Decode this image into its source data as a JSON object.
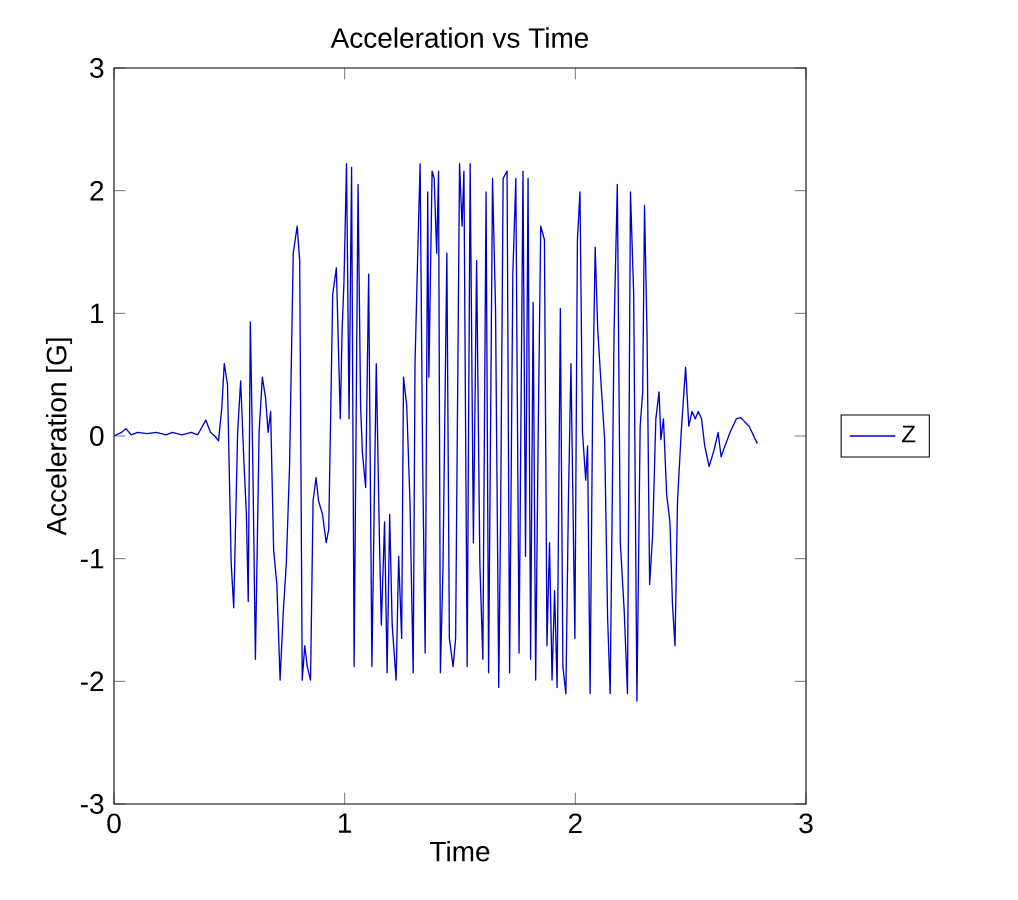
{
  "chart_data": {
    "type": "line",
    "title": "Acceleration vs Time",
    "xlabel": "Time",
    "ylabel": "Acceleration [G]",
    "xlim": [
      0,
      3
    ],
    "ylim": [
      -3,
      3
    ],
    "xticks": [
      0,
      1,
      2,
      3
    ],
    "yticks": [
      -3,
      -2,
      -1,
      0,
      1,
      2,
      3
    ],
    "grid": false,
    "legend": "right",
    "x": [
      0,
      0.033,
      0.052,
      0.074,
      0.102,
      0.143,
      0.184,
      0.225,
      0.253,
      0.294,
      0.335,
      0.363,
      0.398,
      0.418,
      0.437,
      0.453,
      0.467,
      0.478,
      0.492,
      0.508,
      0.519,
      0.536,
      0.549,
      0.563,
      0.574,
      0.582,
      0.591,
      0.602,
      0.613,
      0.629,
      0.643,
      0.657,
      0.668,
      0.679,
      0.692,
      0.706,
      0.72,
      0.734,
      0.747,
      0.761,
      0.777,
      0.794,
      0.805,
      0.816,
      0.827,
      0.838,
      0.852,
      0.863,
      0.876,
      0.887,
      0.904,
      0.92,
      0.931,
      0.948,
      0.964,
      0.981,
      0.989,
      0.997,
      1.008,
      1.019,
      1.03,
      1.041,
      1.058,
      1.069,
      1.077,
      1.091,
      1.104,
      1.118,
      1.137,
      1.151,
      1.159,
      1.173,
      1.184,
      1.195,
      1.206,
      1.223,
      1.234,
      1.247,
      1.255,
      1.269,
      1.283,
      1.297,
      1.305,
      1.316,
      1.327,
      1.338,
      1.349,
      1.36,
      1.365,
      1.379,
      1.388,
      1.399,
      1.407,
      1.415,
      1.426,
      1.443,
      1.454,
      1.47,
      1.481,
      1.498,
      1.509,
      1.517,
      1.531,
      1.544,
      1.558,
      1.572,
      1.586,
      1.599,
      1.613,
      1.624,
      1.641,
      1.654,
      1.668,
      1.676,
      1.687,
      1.704,
      1.715,
      1.729,
      1.742,
      1.756,
      1.773,
      1.784,
      1.795,
      1.806,
      1.817,
      1.828,
      1.839,
      1.85,
      1.866,
      1.877,
      1.888,
      1.899,
      1.91,
      1.921,
      1.935,
      1.946,
      1.959,
      1.97,
      1.981,
      1.998,
      2.009,
      2.02,
      2.031,
      2.045,
      2.053,
      2.064,
      2.075,
      2.086,
      2.097,
      2.108,
      2.127,
      2.14,
      2.151,
      2.168,
      2.182,
      2.195,
      2.212,
      2.226,
      2.239,
      2.253,
      2.267,
      2.281,
      2.292,
      2.3,
      2.311,
      2.322,
      2.335,
      2.349,
      2.363,
      2.371,
      2.382,
      2.396,
      2.41,
      2.421,
      2.432,
      2.443,
      2.459,
      2.478,
      2.492,
      2.506,
      2.52,
      2.533,
      2.547,
      2.561,
      2.58,
      2.602,
      2.619,
      2.632,
      2.649,
      2.671,
      2.698,
      2.717,
      2.753,
      2.789
    ],
    "series": [
      {
        "name": "Z",
        "color": "#0000cc",
        "values": [
          0,
          0.03,
          0.06,
          0.01,
          0.03,
          0.02,
          0.03,
          0.01,
          0.03,
          0.01,
          0.03,
          0.01,
          0.13,
          0.03,
          0,
          -0.04,
          0.22,
          0.59,
          0.42,
          -1.04,
          -1.4,
          0.03,
          0.45,
          -0.2,
          -0.64,
          -1.35,
          0.93,
          -0.25,
          -1.82,
          0.03,
          0.48,
          0.31,
          0.03,
          0.2,
          -0.93,
          -1.21,
          -1.99,
          -1.43,
          -1.04,
          -0.25,
          1.49,
          1.71,
          1.43,
          -1.99,
          -1.71,
          -1.88,
          -1.99,
          -0.53,
          -0.34,
          -0.53,
          -0.64,
          -0.87,
          -0.76,
          1.15,
          1.37,
          0.14,
          0.87,
          1.26,
          2.22,
          0.14,
          2.19,
          -1.88,
          2.05,
          0.25,
          -0.14,
          -0.42,
          1.32,
          -1.88,
          0.59,
          -0.87,
          -1.54,
          -0.7,
          -1.93,
          -0.64,
          -1.54,
          -1.99,
          -0.98,
          -1.65,
          0.48,
          0.25,
          -0.53,
          -1.93,
          0.59,
          1.43,
          2.22,
          -0.2,
          -1.77,
          1.99,
          0.48,
          2.16,
          2.1,
          1.49,
          2.16,
          -1.93,
          -1.09,
          1.49,
          -1.65,
          -1.88,
          -1.65,
          2.22,
          1.71,
          2.16,
          -1.88,
          2.22,
          -0.87,
          1.43,
          -1.04,
          -1.82,
          1.99,
          -1.93,
          2.1,
          1.04,
          -2.05,
          -0.64,
          2.1,
          2.16,
          -1.93,
          1.32,
          2.1,
          -1.77,
          2.16,
          -0.98,
          2.1,
          -1.82,
          1.09,
          -1.99,
          0.03,
          1.71,
          1.6,
          -1.71,
          -0.87,
          -1.99,
          -1.26,
          -2.05,
          1.04,
          -1.88,
          -2.1,
          -0.53,
          0.59,
          -1.65,
          1.6,
          1.99,
          0.03,
          -0.36,
          -0.08,
          -2.1,
          0.25,
          1.54,
          0.87,
          0.53,
          -0.03,
          -1.49,
          -2.1,
          0.87,
          2.05,
          -0.87,
          -1.43,
          -2.1,
          1.99,
          1.15,
          -2.16,
          0.08,
          0.36,
          1.88,
          0.81,
          -1.21,
          -0.81,
          0.14,
          0.36,
          -0.03,
          0.14,
          -0.48,
          -0.7,
          -1.37,
          -1.71,
          -0.53,
          0.03,
          0.56,
          0.08,
          0.2,
          0.14,
          0.2,
          0.14,
          -0.08,
          -0.25,
          -0.11,
          0.03,
          -0.17,
          -0.08,
          0.03,
          0.14,
          0.15,
          0.08,
          -0.06
        ]
      }
    ]
  }
}
